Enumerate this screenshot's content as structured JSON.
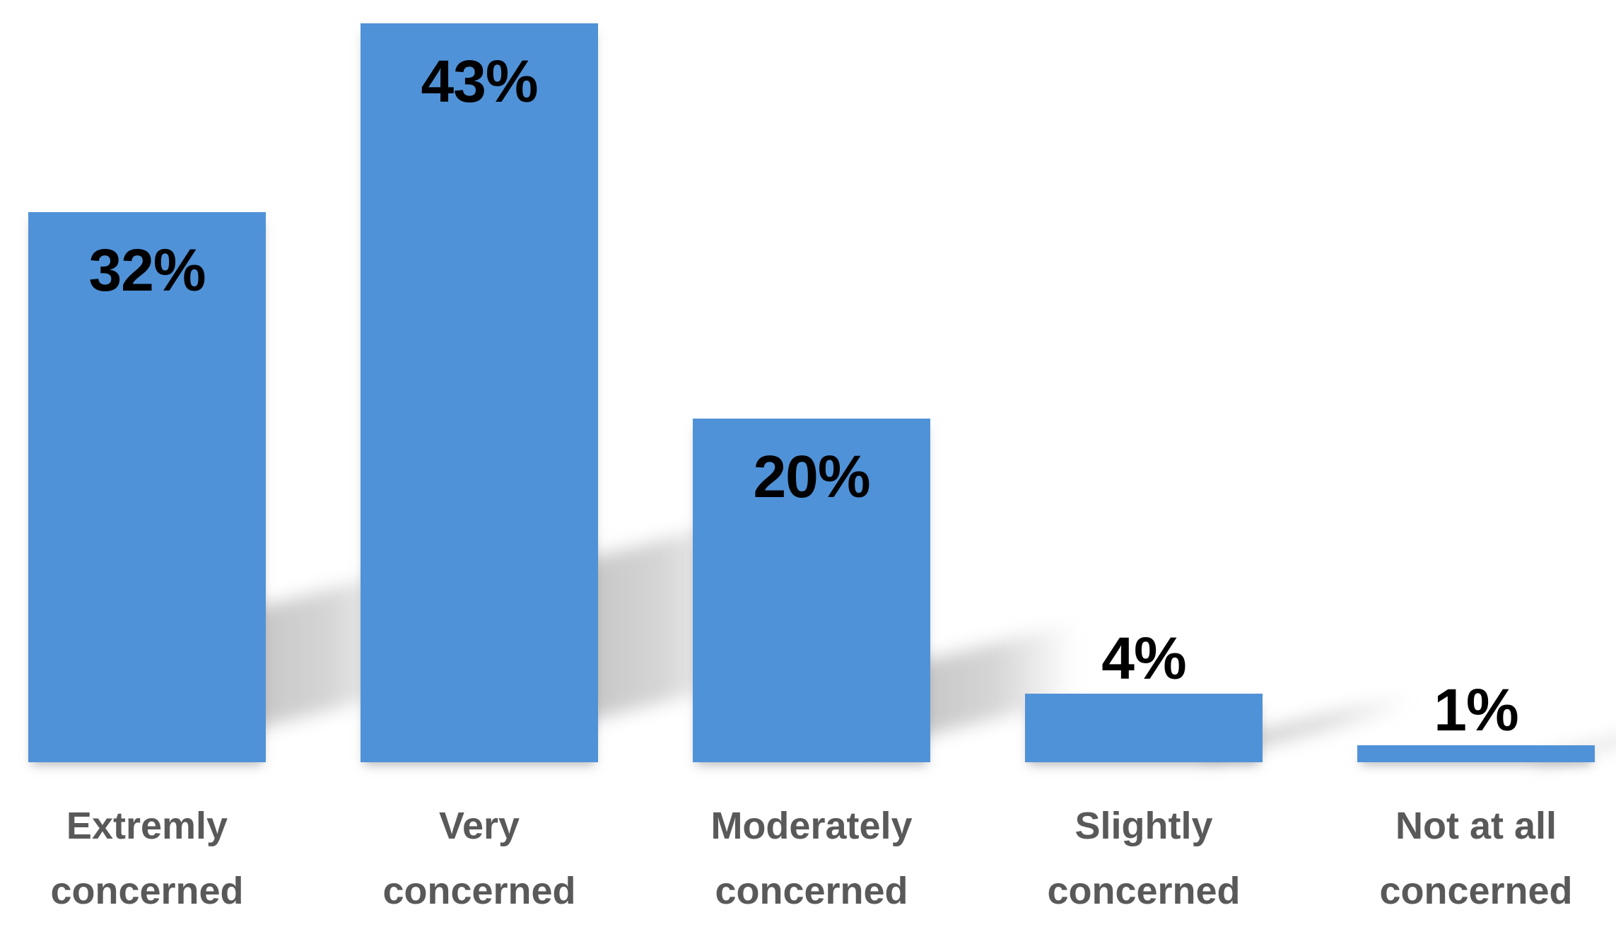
{
  "chart_data": {
    "type": "bar",
    "title": "",
    "categories": [
      "Extremly concerned",
      "Very concerned",
      "Moderately concerned",
      "Slightly concerned",
      "Not at all concerned"
    ],
    "categories_lines": [
      [
        "Extremly",
        "concerned"
      ],
      [
        "Very",
        "concerned"
      ],
      [
        "Moderately",
        "concerned"
      ],
      [
        "Slightly",
        "concerned"
      ],
      [
        "Not at all",
        "concerned"
      ]
    ],
    "values": [
      32,
      43,
      20,
      4,
      1
    ],
    "value_labels": [
      "32%",
      "43%",
      "20%",
      "4%",
      "1%"
    ],
    "value_label_placement": [
      "inside",
      "inside",
      "inside",
      "above",
      "above"
    ],
    "unit": "percent",
    "ylim": [
      0,
      43
    ],
    "axes_visible": false,
    "grid": false,
    "legend": false,
    "bar_color": "#5092D8",
    "value_label_color": "#000000",
    "category_label_color": "#595959",
    "background_color": "#FFFFFF",
    "shadow_rgba_start": "rgba(125,125,125,0.50)",
    "shadow_rgba_mid": "rgba(145,145,145,0.38)",
    "shadow_rgba_end": "rgba(170,170,170,0)"
  }
}
